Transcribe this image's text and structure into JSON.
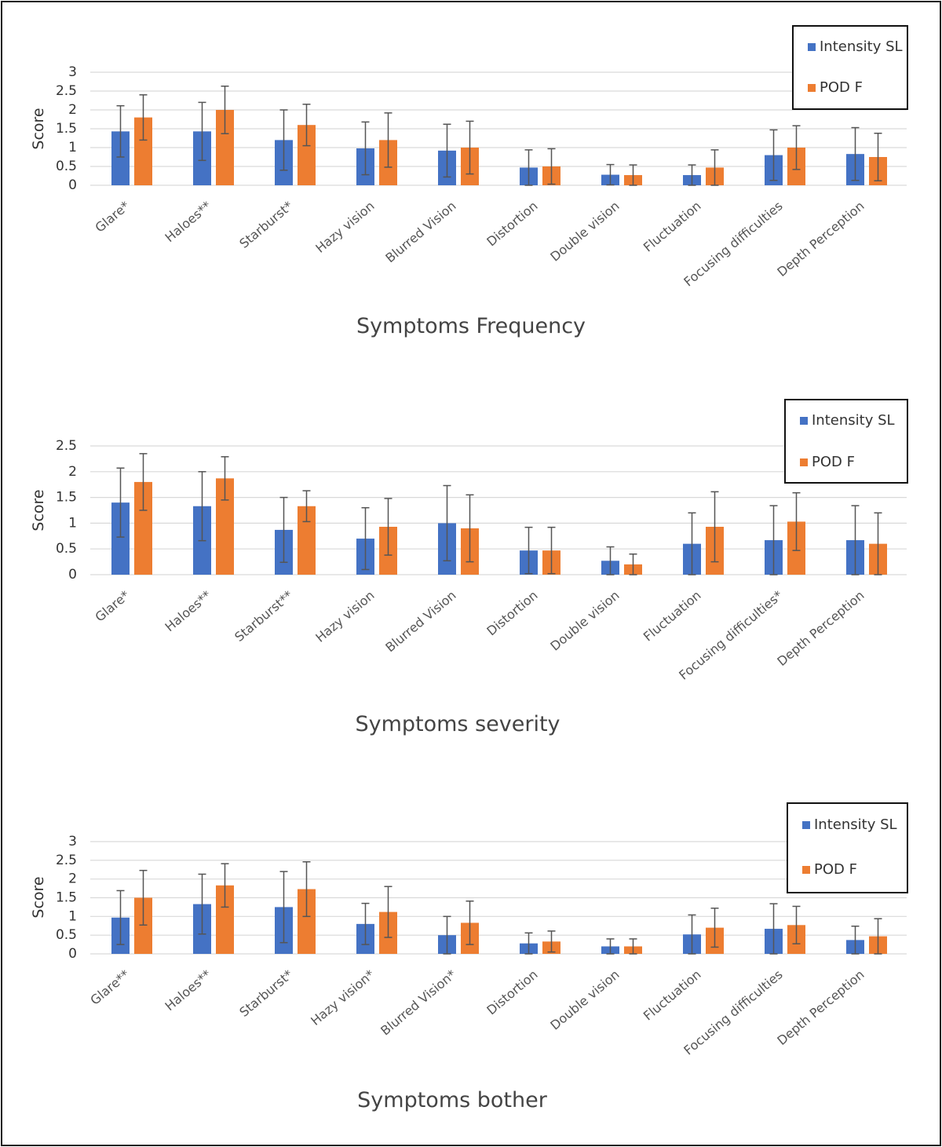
{
  "chart_data": [
    {
      "type": "bar",
      "title": "Symptoms Frequency",
      "ylabel": "Score",
      "ylim": [
        0,
        3
      ],
      "yticks": [
        "0",
        "0.5",
        "1",
        "1.5",
        "2",
        "2.5",
        "3"
      ],
      "ytick_values": [
        0,
        0.5,
        1,
        1.5,
        2,
        2.5,
        3
      ],
      "grid": true,
      "legend_position": "top-right",
      "categories": [
        "Glare*",
        "Haloes**",
        "Starburst*",
        "Hazy vision",
        "Blurred Vision",
        "Distortion",
        "Double vision",
        "Fluctuation",
        "Focusing difficulties",
        "Depth Perception"
      ],
      "series": [
        {
          "name": "Intensity SL",
          "color": "#4472c4",
          "values": [
            1.43,
            1.43,
            1.2,
            0.98,
            0.92,
            0.47,
            0.28,
            0.27,
            0.8,
            0.83
          ],
          "errors": [
            0.68,
            0.77,
            0.8,
            0.7,
            0.7,
            0.47,
            0.27,
            0.27,
            0.67,
            0.7
          ]
        },
        {
          "name": "POD F",
          "color": "#ed7d31",
          "values": [
            1.8,
            2.0,
            1.6,
            1.2,
            1.0,
            0.5,
            0.27,
            0.47,
            1.0,
            0.75
          ],
          "errors": [
            0.6,
            0.63,
            0.55,
            0.72,
            0.7,
            0.47,
            0.27,
            0.47,
            0.58,
            0.63
          ]
        }
      ]
    },
    {
      "type": "bar",
      "title": "Symptoms severity",
      "ylabel": "Score",
      "ylim": [
        0,
        2.5
      ],
      "yticks": [
        "0",
        "0.5",
        "1",
        "1.5",
        "2",
        "2.5"
      ],
      "ytick_values": [
        0,
        0.5,
        1,
        1.5,
        2,
        2.5
      ],
      "grid": true,
      "legend_position": "top-right",
      "categories": [
        "Glare*",
        "Haloes**",
        "Starburst**",
        "Hazy vision",
        "Blurred Vision",
        "Distortion",
        "Double vision",
        "Fluctuation",
        "Focusing difficulties*",
        "Depth Perception"
      ],
      "series": [
        {
          "name": "Intensity SL",
          "color": "#4472c4",
          "values": [
            1.4,
            1.33,
            0.87,
            0.7,
            1.0,
            0.47,
            0.27,
            0.6,
            0.67,
            0.67
          ],
          "errors": [
            0.67,
            0.67,
            0.63,
            0.6,
            0.73,
            0.45,
            0.27,
            0.6,
            0.67,
            0.67
          ]
        },
        {
          "name": "POD F",
          "color": "#ed7d31",
          "values": [
            1.8,
            1.87,
            1.33,
            0.93,
            0.9,
            0.47,
            0.2,
            0.93,
            1.03,
            0.6
          ],
          "errors": [
            0.55,
            0.42,
            0.3,
            0.55,
            0.65,
            0.45,
            0.2,
            0.68,
            0.56,
            0.6
          ]
        }
      ]
    },
    {
      "type": "bar",
      "title": "Symptoms bother",
      "ylabel": "Score",
      "ylim": [
        0,
        3
      ],
      "yticks": [
        "0",
        "0.5",
        "1",
        "1.5",
        "2",
        "2.5",
        "3"
      ],
      "ytick_values": [
        0,
        0.5,
        1,
        1.5,
        2,
        2.5,
        3
      ],
      "grid": true,
      "legend_position": "top-right",
      "categories": [
        "Glare**",
        "Haloes**",
        "Starburst*",
        "Hazy vision*",
        "Blurred Vision*",
        "Distortion",
        "Double vision",
        "Fluctuation",
        "Focusing difficulties",
        "Depth Perception"
      ],
      "series": [
        {
          "name": "Intensity SL",
          "color": "#4472c4",
          "values": [
            0.97,
            1.33,
            1.25,
            0.8,
            0.5,
            0.28,
            0.2,
            0.52,
            0.67,
            0.37
          ],
          "errors": [
            0.72,
            0.8,
            0.95,
            0.55,
            0.5,
            0.28,
            0.2,
            0.52,
            0.67,
            0.37
          ]
        },
        {
          "name": "POD F",
          "color": "#ed7d31",
          "values": [
            1.5,
            1.83,
            1.73,
            1.12,
            0.83,
            0.33,
            0.2,
            0.7,
            0.77,
            0.47
          ],
          "errors": [
            0.73,
            0.58,
            0.73,
            0.68,
            0.58,
            0.28,
            0.2,
            0.52,
            0.5,
            0.47
          ]
        }
      ]
    }
  ]
}
